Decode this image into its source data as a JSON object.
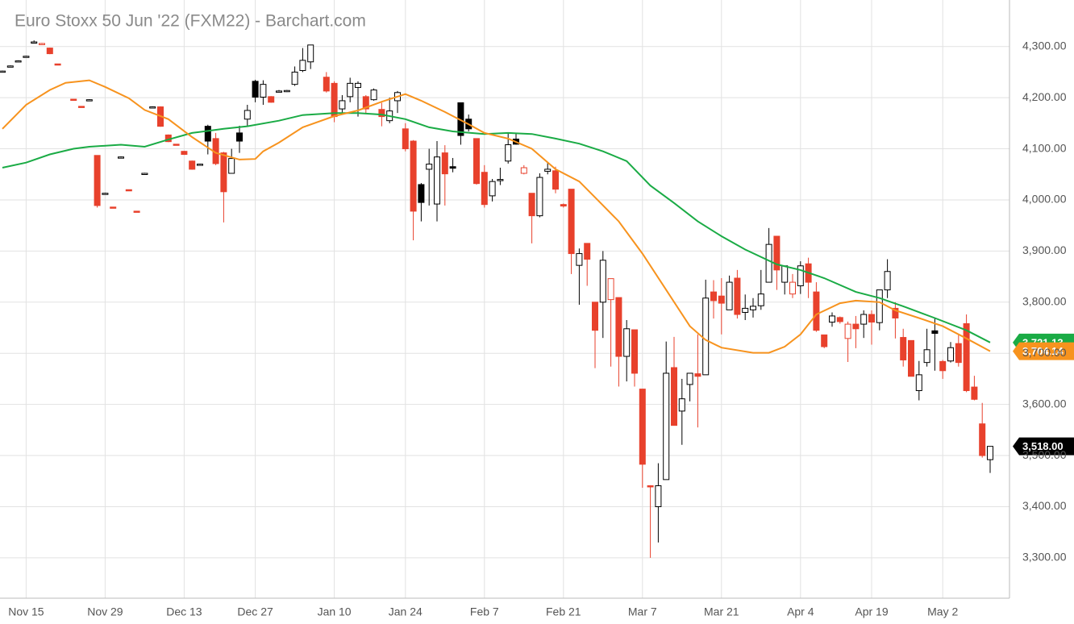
{
  "chart_data": {
    "type": "candlestick",
    "title": "Euro Stoxx 50 Jun '22 (FXM22) - Barchart.com",
    "categories": [
      null,
      null,
      null,
      "Nov 15",
      null,
      null,
      null,
      null,
      null,
      null,
      null,
      null,
      null,
      "Nov 29",
      null,
      null,
      null,
      null,
      null,
      null,
      null,
      null,
      null,
      "Dec 13",
      null,
      null,
      null,
      null,
      null,
      null,
      null,
      null,
      "Dec 27",
      null,
      null,
      null,
      null,
      null,
      null,
      null,
      null,
      null,
      "Jan 10",
      null,
      null,
      null,
      null,
      null,
      null,
      null,
      null,
      "Jan 24",
      null,
      null,
      null,
      null,
      null,
      null,
      null,
      null,
      null,
      "Feb 7",
      null,
      null,
      null,
      null,
      null,
      null,
      null,
      null,
      null,
      "Feb 21",
      null,
      null,
      null,
      null,
      null,
      null,
      null,
      null,
      null,
      "Mar 7",
      null,
      null,
      null,
      null,
      null,
      null,
      null,
      null,
      null,
      "Mar 21",
      null,
      null,
      null,
      null,
      null,
      null,
      null,
      null,
      null,
      "Apr 4",
      null,
      null,
      null,
      null,
      null,
      null,
      null,
      null,
      "Apr 19",
      null,
      null,
      null,
      null,
      null,
      null,
      null,
      null,
      "May 2",
      null,
      null,
      null,
      null,
      null,
      null
    ],
    "open": [
      4252,
      4262,
      4272,
      4281,
      4308,
      4306,
      4297,
      4266,
      null,
      4197,
      4183,
      4195,
      4087,
      4012,
      3986,
      4083,
      4020,
      3978,
      4051,
      4181,
      4182,
      4127,
      4109,
      4095,
      4076,
      4069,
      4144,
      4120,
      4092,
      4052,
      4131,
      4158,
      4232,
      4201,
      4202,
      4212,
      4213,
      4226,
      4253,
      4270,
      null,
      4240,
      4228,
      4178,
      4202,
      4220,
      4202,
      4196,
      4177,
      4155,
      4194,
      4139,
      4115,
      4030,
      4060,
      3992,
      4092,
      4065,
      4190,
      4158,
      4120,
      4054,
      4008,
      4038,
      4076,
      4119,
      4052,
      4013,
      3969,
      4056,
      4057,
      3991,
      4021,
      3872,
      3915,
      3800,
      3800,
      3805,
      3809,
      3694,
      3746,
      3630,
      3441,
      3400,
      3453,
      3672,
      3587,
      3639,
      3660,
      3658,
      3820,
      3812,
      3785,
      3847,
      3780,
      3785,
      3793,
      3839,
      3929,
      3839,
      3816,
      3832,
      3875,
      3820,
      3736,
      3761,
      3770,
      3729,
      3757,
      3757,
      3776,
      3760,
      3824,
      3788,
      3731,
      3725,
      3627,
      3682,
      3744,
      3684,
      3685,
      3719,
      3758,
      3634,
      3562,
      3492
    ],
    "high": [
      4253,
      4263,
      4273,
      4282,
      4312,
      4307,
      4298,
      4266,
      null,
      4197,
      4183,
      4197,
      4087,
      4014,
      3986,
      4085,
      4020,
      3978,
      4053,
      4183,
      4183,
      4128,
      4109,
      4096,
      4077,
      4071,
      4147,
      4131,
      4094,
      4100,
      4145,
      4186,
      4235,
      4234,
      4203,
      4215,
      4215,
      4261,
      4297,
      4303,
      null,
      4250,
      4232,
      4205,
      4239,
      4232,
      4205,
      4218,
      4190,
      4200,
      4213,
      4150,
      4117,
      4033,
      4100,
      4115,
      4107,
      4082,
      4190,
      4167,
      4120,
      4068,
      4041,
      4063,
      4131,
      4131,
      4068,
      4013,
      4052,
      4072,
      4065,
      3993,
      4021,
      3905,
      3915,
      3800,
      3900,
      3846,
      3809,
      3765,
      3746,
      3630,
      3442,
      3485,
      3723,
      3732,
      3650,
      3661,
      3737,
      3844,
      3843,
      3847,
      3852,
      3863,
      3815,
      3808,
      3863,
      3945,
      3929,
      3871,
      3855,
      3880,
      3887,
      3839,
      3736,
      3780,
      3772,
      3762,
      3773,
      3784,
      3784,
      3824,
      3884,
      3800,
      3748,
      3725,
      3685,
      3748,
      3768,
      3687,
      3722,
      3737,
      3776,
      3656,
      3603,
      3518
    ],
    "low": [
      4251,
      4261,
      4271,
      4280,
      4306,
      4305,
      4285,
      4264,
      null,
      4195,
      4181,
      4195,
      3985,
      4012,
      3984,
      4083,
      4018,
      3976,
      4051,
      4181,
      4143,
      4113,
      4107,
      4088,
      4059,
      4069,
      4089,
      4068,
      3956,
      4052,
      4092,
      4144,
      4191,
      4186,
      4190,
      4211,
      4211,
      4223,
      4250,
      4256,
      null,
      4210,
      4152,
      4170,
      4191,
      4163,
      4170,
      4194,
      4144,
      4150,
      4170,
      4095,
      3921,
      3958,
      3989,
      3958,
      3989,
      4054,
      4108,
      4134,
      4030,
      3985,
      3997,
      4029,
      4071,
      4108,
      4050,
      3915,
      3966,
      4050,
      4013,
      3985,
      3855,
      3795,
      3832,
      3671,
      3730,
      3674,
      3635,
      3645,
      3635,
      3437,
      3300,
      3330,
      3453,
      3559,
      3521,
      3606,
      3555,
      3658,
      3768,
      3737,
      3785,
      3768,
      3765,
      3770,
      3785,
      3839,
      3824,
      3815,
      3808,
      3816,
      3808,
      3742,
      3710,
      3752,
      3758,
      3683,
      3710,
      3730,
      3717,
      3745,
      3808,
      3729,
      3674,
      3655,
      3608,
      3674,
      3666,
      3650,
      3682,
      3674,
      3624,
      3608,
      3496,
      3466
    ],
    "close": [
      4252,
      4262,
      4272,
      4281,
      4309,
      4306,
      4286,
      4265,
      null,
      4196,
      4182,
      4196,
      3989,
      4013,
      3985,
      4084,
      4019,
      3977,
      4052,
      4182,
      4144,
      4114,
      4108,
      4089,
      4060,
      4070,
      4115,
      4071,
      4016,
      4081,
      4115,
      4175,
      4201,
      4226,
      4191,
      4213,
      4214,
      4250,
      4273,
      4303,
      null,
      4213,
      4163,
      4194,
      4228,
      4228,
      4178,
      4215,
      4163,
      4174,
      4210,
      4100,
      3978,
      3995,
      4070,
      4084,
      4051,
      4062,
      4126,
      4139,
      4032,
      3991,
      4036,
      4040,
      4108,
      4109,
      4063,
      3969,
      4044,
      4060,
      4021,
      3988,
      3895,
      3895,
      3884,
      3745,
      3882,
      3846,
      3694,
      3748,
      3661,
      3483,
      3440,
      3441,
      3661,
      3559,
      3611,
      3661,
      3655,
      3808,
      3803,
      3798,
      3839,
      3776,
      3788,
      3792,
      3816,
      3913,
      3863,
      3871,
      3839,
      3871,
      3839,
      3745,
      3713,
      3773,
      3762,
      3757,
      3748,
      3776,
      3761,
      3824,
      3860,
      3769,
      3687,
      3655,
      3658,
      3707,
      3739,
      3666,
      3711,
      3682,
      3627,
      3610,
      3500,
      3518
    ],
    "last_label": "3,518.00",
    "up_color": "#000000",
    "down_color": "#e8412c",
    "badge_color": "#000000",
    "series": [
      {
        "color": "#1aab45",
        "x": [
          0,
          3,
          6,
          9,
          11,
          15,
          18,
          21,
          24,
          28,
          31,
          35,
          38,
          42,
          45,
          48,
          51,
          54,
          57,
          61,
          64,
          67,
          70,
          73,
          76,
          79,
          82,
          85,
          88,
          91,
          94,
          98,
          101,
          104,
          108,
          111,
          114,
          118,
          122,
          125
        ],
        "values": [
          4063,
          4073,
          4089,
          4100,
          4104,
          4108,
          4104,
          4118,
          4131,
          4139,
          4144,
          4155,
          4166,
          4170,
          4170,
          4167,
          4158,
          4142,
          4134,
          4129,
          4131,
          4129,
          4120,
          4110,
          4095,
          4076,
          4028,
          3994,
          3958,
          3929,
          3903,
          3874,
          3863,
          3847,
          3820,
          3808,
          3792,
          3769,
          3745,
          3721.13
        ],
        "last_label": "3,721.13"
      },
      {
        "color": "#f7931e",
        "x": [
          0,
          3,
          6,
          8,
          11,
          13,
          16,
          18,
          21,
          24,
          27,
          30,
          32,
          33,
          35,
          38,
          42,
          45,
          48,
          51,
          53,
          56,
          59,
          61,
          64,
          67,
          70,
          73,
          75,
          78,
          81,
          84,
          87,
          89,
          91,
          95,
          97,
          99,
          101,
          103,
          106,
          108,
          111,
          113,
          116,
          119,
          122,
          125
        ],
        "values": [
          4139,
          4186,
          4215,
          4229,
          4234,
          4221,
          4199,
          4176,
          4158,
          4123,
          4092,
          4079,
          4080,
          4095,
          4112,
          4142,
          4164,
          4175,
          4192,
          4207,
          4194,
          4172,
          4148,
          4131,
          4120,
          4100,
          4060,
          4036,
          4005,
          3958,
          3895,
          3824,
          3753,
          3726,
          3711,
          3701,
          3701,
          3713,
          3737,
          3776,
          3798,
          3803,
          3800,
          3784,
          3769,
          3753,
          3729,
          3704.14
        ],
        "last_label": "3,704.14"
      }
    ],
    "ylim": [
      3221,
      4391
    ],
    "yticks": [
      {
        "value": 3300,
        "label": "3,300.00"
      },
      {
        "value": 3400,
        "label": "3,400.00"
      },
      {
        "value": 3500,
        "label": "3,500.00"
      },
      {
        "value": 3600,
        "label": "3,600.00"
      },
      {
        "value": 3700,
        "label": "3,700.00"
      },
      {
        "value": 3800,
        "label": "3,800.00"
      },
      {
        "value": 3900,
        "label": "3,900.00"
      },
      {
        "value": 4000,
        "label": "4,000.00"
      },
      {
        "value": 4100,
        "label": "4,100.00"
      },
      {
        "value": 4200,
        "label": "4,200.00"
      },
      {
        "value": 4300,
        "label": "4,300.00"
      }
    ],
    "grid": true
  }
}
